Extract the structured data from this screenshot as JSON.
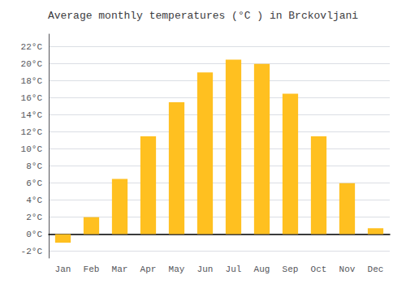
{
  "chart_data": {
    "type": "bar",
    "title": "Average monthly temperatures (°C ) in Brckovljani",
    "categories": [
      "Jan",
      "Feb",
      "Mar",
      "Apr",
      "May",
      "Jun",
      "Jul",
      "Aug",
      "Sep",
      "Oct",
      "Nov",
      "Dec"
    ],
    "values": [
      -1.0,
      2.0,
      6.5,
      11.5,
      15.5,
      19.0,
      20.5,
      20.0,
      16.5,
      11.5,
      6.0,
      0.7
    ],
    "color": "#FFC020",
    "ylim": [
      -2.8,
      23.5
    ],
    "yticks": [
      {
        "value": -2,
        "label": "-2°C"
      },
      {
        "value": 0,
        "label": "0°C"
      },
      {
        "value": 2,
        "label": "2°C"
      },
      {
        "value": 4,
        "label": "4°C"
      },
      {
        "value": 6,
        "label": "6°C"
      },
      {
        "value": 8,
        "label": "8°C"
      },
      {
        "value": 10,
        "label": "10°C"
      },
      {
        "value": 12,
        "label": "12°C"
      },
      {
        "value": 14,
        "label": "14°C"
      },
      {
        "value": 16,
        "label": "16°C"
      },
      {
        "value": 18,
        "label": "18°C"
      },
      {
        "value": 20,
        "label": "20°C"
      },
      {
        "value": 22,
        "label": "22°C"
      }
    ],
    "grid": true
  }
}
